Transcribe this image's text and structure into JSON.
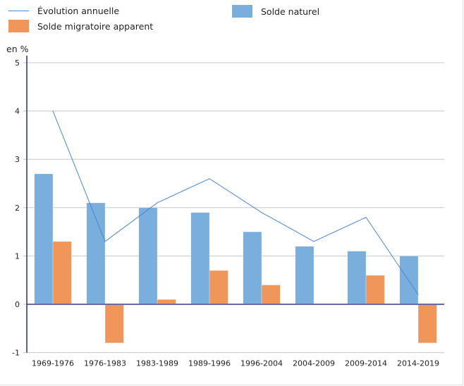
{
  "legend": {
    "items": [
      {
        "label": "Évolution annuelle",
        "kind": "line",
        "color": "#4a86d8"
      },
      {
        "label": "Solde naturel",
        "kind": "bar",
        "color": "#7aaedc"
      },
      {
        "label": "Solde migratoire apparent",
        "kind": "bar",
        "color": "#f0965a"
      }
    ]
  },
  "unit_label": "en %",
  "chart_data": {
    "type": "bar",
    "title": "",
    "xlabel": "",
    "ylabel": "en %",
    "ylim": [
      -1,
      5
    ],
    "yticks": [
      -1,
      0,
      1,
      2,
      3,
      4,
      5
    ],
    "grid": true,
    "legend_position": "top",
    "categories": [
      "1969-1976",
      "1976-1983",
      "1983-1989",
      "1989-1996",
      "1996-2004",
      "2004-2009",
      "2009-2014",
      "2014-2019"
    ],
    "series": [
      {
        "name": "Solde naturel",
        "type": "bar",
        "color": "#7aaedc",
        "values": [
          2.7,
          2.1,
          2.0,
          1.9,
          1.5,
          1.2,
          1.1,
          1.0
        ]
      },
      {
        "name": "Solde migratoire apparent",
        "type": "bar",
        "color": "#f0965a",
        "values": [
          1.3,
          -0.8,
          0.1,
          0.7,
          0.4,
          0.0,
          0.6,
          -0.8
        ]
      },
      {
        "name": "Évolution annuelle",
        "type": "line",
        "color": "#4a86d8",
        "values": [
          4.0,
          1.3,
          2.1,
          2.6,
          1.9,
          1.3,
          1.8,
          0.2
        ]
      }
    ]
  }
}
